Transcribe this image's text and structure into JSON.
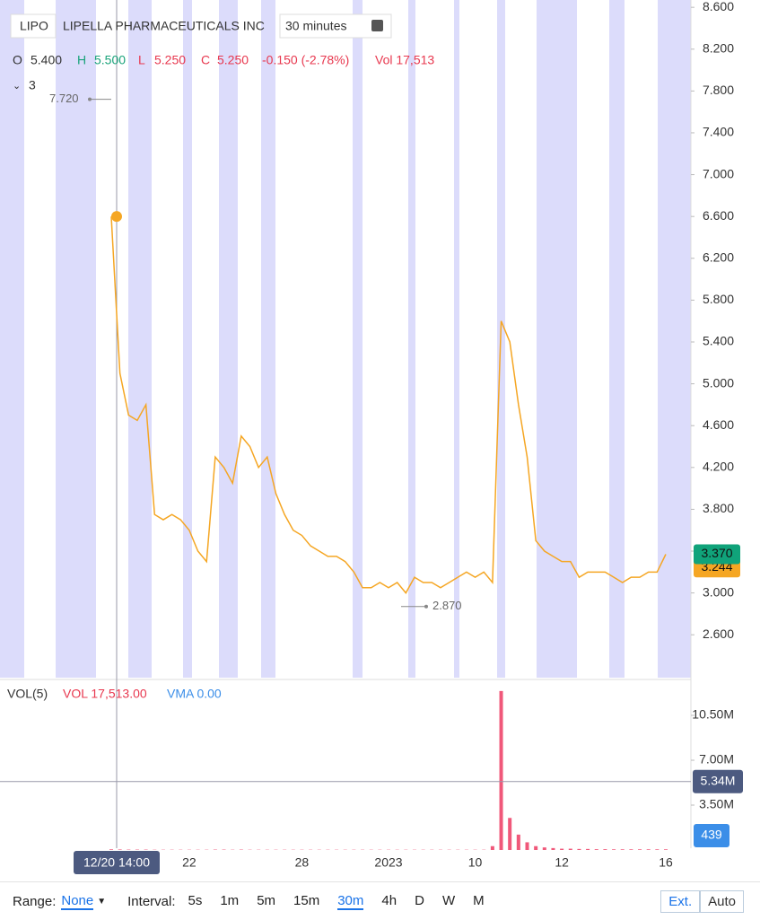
{
  "header": {
    "symbol": "LIPO",
    "name": "LIPELLA PHARMACEUTICALS INC",
    "interval": "30 minutes",
    "indicator": "3"
  },
  "ohlc": {
    "o_label": "O",
    "o": "5.400",
    "h_label": "H",
    "h": "5.500",
    "l_label": "L",
    "l": "5.250",
    "c_label": "C",
    "c": "5.250",
    "change": "-0.150 (-2.78%)",
    "vol": "Vol 17,513"
  },
  "chart_data": [
    {
      "type": "line",
      "color": "#f5a623",
      "categories": [
        "12/20 14:00",
        null,
        null,
        null,
        null,
        null,
        null,
        null,
        null,
        "22",
        null,
        null,
        null,
        null,
        null,
        null,
        null,
        null,
        null,
        null,
        null,
        null,
        "28",
        null,
        null,
        null,
        null,
        null,
        null,
        null,
        null,
        null,
        "2023",
        null,
        null,
        null,
        null,
        null,
        null,
        null,
        null,
        null,
        "10",
        null,
        null,
        null,
        null,
        null,
        null,
        null,
        null,
        null,
        "12",
        null,
        null,
        null,
        null,
        null,
        null,
        null,
        null,
        null,
        null,
        null,
        "16"
      ],
      "values": [
        6.6,
        5.1,
        4.7,
        4.65,
        4.8,
        3.75,
        3.7,
        3.75,
        3.7,
        3.6,
        3.4,
        3.3,
        4.3,
        4.2,
        4.05,
        4.5,
        4.4,
        4.2,
        4.3,
        3.95,
        3.75,
        3.6,
        3.55,
        3.45,
        3.4,
        3.35,
        3.35,
        3.3,
        3.2,
        3.05,
        3.05,
        3.1,
        3.05,
        3.1,
        3.0,
        3.15,
        3.1,
        3.1,
        3.05,
        3.1,
        3.15,
        3.2,
        3.15,
        3.2,
        3.1,
        5.6,
        5.4,
        4.8,
        4.3,
        3.5,
        3.4,
        3.35,
        3.3,
        3.3,
        3.15,
        3.2,
        3.2,
        3.2,
        3.15,
        3.1,
        3.15,
        3.15,
        3.2,
        3.2,
        3.37
      ],
      "ylim": [
        2.19,
        8.67
      ],
      "yticks": [
        {
          "value": 2.6,
          "label": "2.600"
        },
        {
          "value": 3.0,
          "label": "3.000"
        },
        {
          "value": 3.4,
          "label": "3.400"
        },
        {
          "value": 3.8,
          "label": "3.800"
        },
        {
          "value": 4.2,
          "label": "4.200"
        },
        {
          "value": 4.6,
          "label": "4.600"
        },
        {
          "value": 5.0,
          "label": "5.000"
        },
        {
          "value": 5.4,
          "label": "5.400"
        },
        {
          "value": 5.8,
          "label": "5.800"
        },
        {
          "value": 6.2,
          "label": "6.200"
        },
        {
          "value": 6.6,
          "label": "6.600"
        },
        {
          "value": 7.0,
          "label": "7.000"
        },
        {
          "value": 7.4,
          "label": "7.400"
        },
        {
          "value": 7.8,
          "label": "7.800"
        },
        {
          "value": 8.2,
          "label": "8.200"
        },
        {
          "value": 8.6,
          "label": "8.600"
        }
      ],
      "annotations": [
        {
          "value": 7.72,
          "label": "7.720"
        },
        {
          "value": 2.87,
          "label": "2.870"
        }
      ],
      "price_labels": [
        {
          "value": 3.244,
          "label": "3.244",
          "color": "#f5a623"
        },
        {
          "value": 3.37,
          "label": "3.370",
          "color": "#10a37a"
        }
      ]
    },
    {
      "type": "bar",
      "color": "#f0587a",
      "name": "VOL(5)",
      "vol": "VOL 17,513.00",
      "vma": "VMA 0.00",
      "values": [
        50000,
        40000,
        30000,
        30000,
        30000,
        20000,
        20000,
        20000,
        20000,
        20000,
        20000,
        20000,
        30000,
        30000,
        20000,
        30000,
        20000,
        20000,
        20000,
        20000,
        20000,
        20000,
        20000,
        20000,
        20000,
        20000,
        20000,
        20000,
        20000,
        20000,
        20000,
        20000,
        20000,
        20000,
        20000,
        20000,
        20000,
        20000,
        20000,
        20000,
        20000,
        20000,
        20000,
        20000,
        300000,
        12400000,
        2500000,
        1200000,
        600000,
        300000,
        200000,
        150000,
        100000,
        100000,
        80000,
        80000,
        60000,
        60000,
        50000,
        50000,
        50000,
        50000,
        50000,
        50000,
        50000
      ],
      "ylim": [
        0,
        12950000
      ],
      "yticks": [
        {
          "value": 3500000,
          "label": "3.50M"
        },
        {
          "value": 7000000,
          "label": "7.00M"
        },
        {
          "value": 10500000,
          "label": "10.50M"
        }
      ],
      "crosshair": {
        "value": 5340000,
        "label": "5.34M"
      },
      "badge": "439"
    }
  ],
  "toolbar": {
    "range_label": "Range:",
    "range": "None",
    "interval_label": "Interval:",
    "intervals": [
      "5s",
      "1m",
      "5m",
      "15m",
      "30m",
      "4h",
      "D",
      "W",
      "M"
    ],
    "ext": "Ext.",
    "auto": "Auto"
  }
}
